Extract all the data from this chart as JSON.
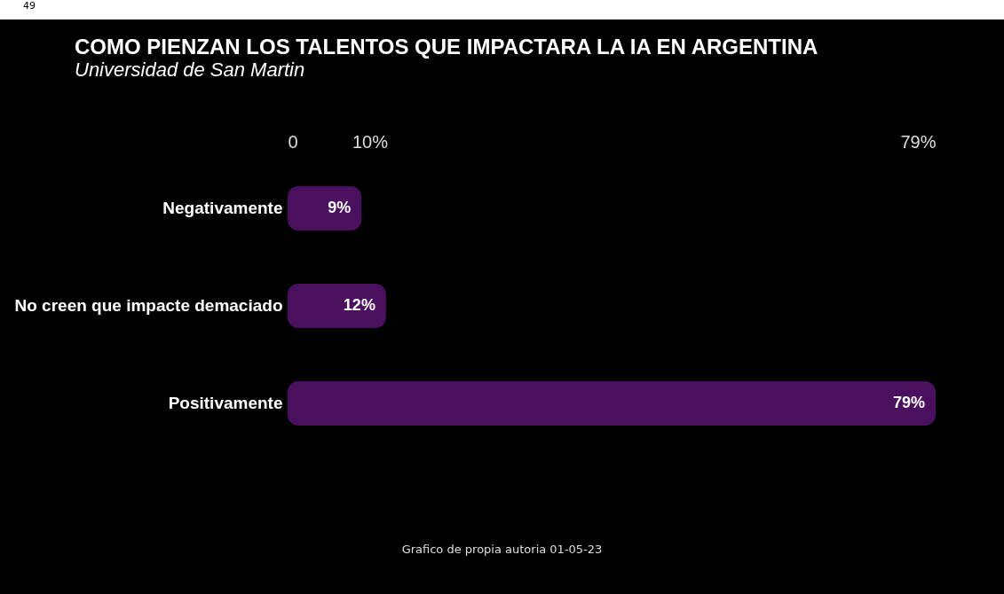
{
  "chart_data": {
    "type": "bar",
    "orientation": "horizontal",
    "title": "COMO PIENZAN LOS TALENTOS QUE IMPACTARA  LA IA EN ARGENTINA",
    "subtitle": "Universidad de San Martin",
    "categories": [
      "Negativamente",
      "No  creen que impacte demaciado",
      "Positivamente"
    ],
    "values": [
      9,
      12,
      79
    ],
    "color": "#4b0f60",
    "xlim": [
      0,
      79
    ],
    "xticks": [
      0,
      {
        "value": 10,
        "label": "10%"
      },
      {
        "value": 79,
        "label": "79%"
      }
    ],
    "data_labels": true,
    "value_labels": [
      "9%",
      "12%",
      "79%"
    ],
    "annotations": [
      "49",
      "Grafico de propia autoria 01-05-23"
    ]
  }
}
